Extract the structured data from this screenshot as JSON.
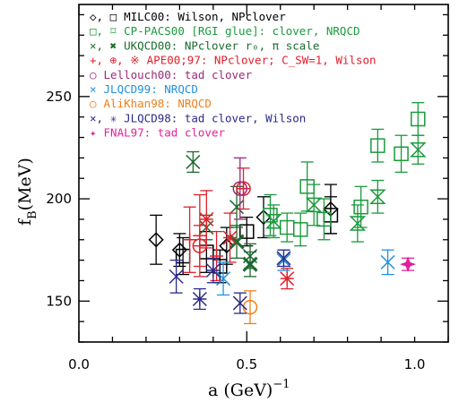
{
  "chart_data": {
    "type": "scatter",
    "title": "",
    "xlabel": "a (GeV)",
    "xlabel_exp": "−1",
    "ylabel_main": "f",
    "ylabel_sub": "B",
    "ylabel_unit": "(MeV)",
    "xlim": [
      0.0,
      1.1
    ],
    "ylim": [
      130,
      295
    ],
    "x_ticks": [
      {
        "value": 0.0,
        "label": "0.0"
      },
      {
        "value": 0.5,
        "label": "0.5"
      },
      {
        "value": 1.0,
        "label": "1.0"
      }
    ],
    "y_ticks": [
      {
        "value": 150,
        "label": "150"
      },
      {
        "value": 200,
        "label": "200"
      },
      {
        "value": 250,
        "label": "250"
      }
    ],
    "grid": false,
    "legend_position": "top-left",
    "legend": [
      {
        "symbols": "◇, □",
        "text": "MILC00: Wilson, NPclover",
        "color": "#000000"
      },
      {
        "symbols": "□, ⌑",
        "text": "CP-PACS00 [RGI glue]: clover, NRQCD",
        "color": "#1a9a3c"
      },
      {
        "symbols": "×, ✖",
        "text": "UKQCD00: NPclover r₀, π scale",
        "color": "#1b6b2e"
      },
      {
        "symbols": "+, ⊕, ※",
        "text": "APE00;97: NPclover; C_SW=1, Wilson",
        "color": "#e0202a"
      },
      {
        "symbols": "○",
        "text": "Lellouch00: tad clover",
        "color": "#9a2a7a"
      },
      {
        "symbols": "×",
        "text": "JLQCD99: NRQCD",
        "color": "#1e90e0"
      },
      {
        "symbols": "○",
        "text": "AliKhan98: NRQCD",
        "color": "#f07f1a"
      },
      {
        "symbols": "×, ✳",
        "text": "JLQCD98: tad clover, Wilson",
        "color": "#2a2a8a"
      },
      {
        "symbols": "✦",
        "text": "FNAL97: tad clover",
        "color": "#e0209a"
      }
    ],
    "series": [
      {
        "name": "MILC00 Wilson",
        "marker": "diamond",
        "color": "#000000",
        "points": [
          {
            "x": 0.23,
            "y": 180,
            "err": 12
          },
          {
            "x": 0.3,
            "y": 175,
            "err": 8
          },
          {
            "x": 0.44,
            "y": 177,
            "err": 9
          },
          {
            "x": 0.55,
            "y": 191,
            "err": 10
          },
          {
            "x": 0.75,
            "y": 195,
            "err": 12
          }
        ]
      },
      {
        "name": "MILC00 NPclover",
        "marker": "square",
        "color": "#000000",
        "points": [
          {
            "x": 0.31,
            "y": 172,
            "err": 9
          },
          {
            "x": 0.38,
            "y": 174,
            "err": 10
          },
          {
            "x": 0.42,
            "y": 167,
            "err": 8
          },
          {
            "x": 0.5,
            "y": 184,
            "err": 7
          },
          {
            "x": 0.75,
            "y": 192,
            "err": 9
          }
        ]
      },
      {
        "name": "CP-PACS00 clover",
        "marker": "square",
        "color": "#1a9a3c",
        "points": [
          {
            "x": 0.57,
            "y": 192,
            "err": 10
          },
          {
            "x": 0.62,
            "y": 186,
            "err": 7
          },
          {
            "x": 0.66,
            "y": 185,
            "err": 8
          },
          {
            "x": 0.68,
            "y": 206,
            "err": 12
          },
          {
            "x": 0.73,
            "y": 190,
            "err": 10
          },
          {
            "x": 0.84,
            "y": 196,
            "err": 10
          },
          {
            "x": 0.89,
            "y": 226,
            "err": 8
          },
          {
            "x": 0.96,
            "y": 222,
            "err": 9
          },
          {
            "x": 1.01,
            "y": 239,
            "err": 8
          }
        ]
      },
      {
        "name": "CP-PACS00 NRQCD",
        "marker": "hourglass",
        "color": "#1a9a3c",
        "points": [
          {
            "x": 0.58,
            "y": 189,
            "err": 8
          },
          {
            "x": 0.7,
            "y": 197,
            "err": 10
          },
          {
            "x": 0.83,
            "y": 188,
            "err": 9
          },
          {
            "x": 0.89,
            "y": 201,
            "err": 8
          },
          {
            "x": 1.01,
            "y": 224,
            "err": 7
          }
        ]
      },
      {
        "name": "UKQCD00 r0",
        "marker": "cross",
        "color": "#1b6b2e",
        "points": [
          {
            "x": 0.34,
            "y": 218,
            "err": 5
          },
          {
            "x": 0.38,
            "y": 186,
            "err": 6
          },
          {
            "x": 0.47,
            "y": 196,
            "err": 10
          },
          {
            "x": 0.51,
            "y": 172,
            "err": 6
          }
        ]
      },
      {
        "name": "UKQCD00 pi scale",
        "marker": "cross-bold",
        "color": "#1b6b2e",
        "points": [
          {
            "x": 0.47,
            "y": 179,
            "err": 8
          },
          {
            "x": 0.51,
            "y": 168,
            "err": 6
          }
        ]
      },
      {
        "name": "APE00;97 NPclover",
        "marker": "plus",
        "color": "#e0202a",
        "points": [
          {
            "x": 0.33,
            "y": 180,
            "err": 16
          },
          {
            "x": 0.36,
            "y": 182,
            "err": 20
          },
          {
            "x": 0.41,
            "y": 172,
            "err": 12
          }
        ]
      },
      {
        "name": "APE00;97 CSW=1",
        "marker": "circle-plus",
        "color": "#e0202a",
        "points": [
          {
            "x": 0.36,
            "y": 177,
            "err": 10
          },
          {
            "x": 0.49,
            "y": 205,
            "err": 10
          }
        ]
      },
      {
        "name": "APE00;97 Wilson",
        "marker": "asterisk",
        "color": "#e0202a",
        "points": [
          {
            "x": 0.38,
            "y": 190,
            "err": 14
          },
          {
            "x": 0.45,
            "y": 181,
            "err": 12
          },
          {
            "x": 0.62,
            "y": 161,
            "err": 5
          }
        ]
      },
      {
        "name": "Lellouch00",
        "marker": "circle",
        "color": "#9a2a7a",
        "points": [
          {
            "x": 0.48,
            "y": 205,
            "err": 15
          }
        ]
      },
      {
        "name": "JLQCD99",
        "marker": "cross",
        "color": "#1e90e0",
        "points": [
          {
            "x": 0.43,
            "y": 161,
            "err": 8
          },
          {
            "x": 0.61,
            "y": 170,
            "err": 5
          },
          {
            "x": 0.92,
            "y": 169,
            "err": 6
          }
        ]
      },
      {
        "name": "AliKhan98",
        "marker": "circle",
        "color": "#f07f1a",
        "points": [
          {
            "x": 0.51,
            "y": 147,
            "err": 8
          }
        ]
      },
      {
        "name": "JLQCD98 tad clover",
        "marker": "cross",
        "color": "#2a2a8a",
        "points": [
          {
            "x": 0.29,
            "y": 162,
            "err": 8
          },
          {
            "x": 0.48,
            "y": 149,
            "err": 5
          },
          {
            "x": 0.61,
            "y": 171,
            "err": 4
          }
        ]
      },
      {
        "name": "JLQCD98 Wilson",
        "marker": "asterisk",
        "color": "#2a2a8a",
        "points": [
          {
            "x": 0.36,
            "y": 151,
            "err": 5
          },
          {
            "x": 0.4,
            "y": 165,
            "err": 6
          }
        ]
      },
      {
        "name": "FNAL97",
        "marker": "star4",
        "color": "#e0209a",
        "points": [
          {
            "x": 0.98,
            "y": 168,
            "err": 3
          }
        ]
      }
    ]
  }
}
